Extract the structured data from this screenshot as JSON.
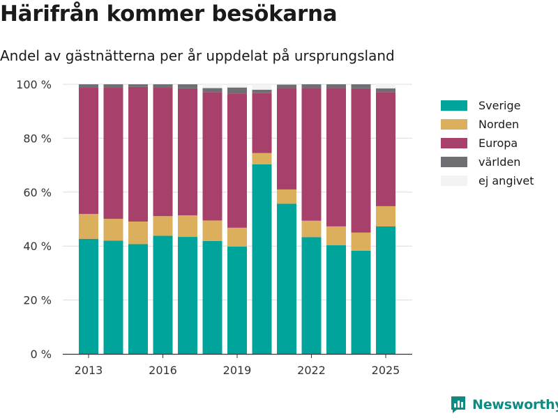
{
  "title": "Härifrån kommer besökarna",
  "subtitle": "Andel av gästnätterna per år uppdelat på ursprungsland",
  "brand": {
    "name": "Newsworthy",
    "icon": "newsworthy-logo-icon",
    "color": "#0e8a82"
  },
  "chart_data": {
    "type": "bar",
    "stacked": true,
    "categories": [
      2013,
      2014,
      2015,
      2016,
      2017,
      2018,
      2019,
      2020,
      2021,
      2022,
      2023,
      2024,
      2025
    ],
    "x_ticks": [
      "2013",
      "2016",
      "2019",
      "2022",
      "2025"
    ],
    "y_ticks": [
      "0 %",
      "20 %",
      "40 %",
      "60 %",
      "80 %",
      "100 %"
    ],
    "ylim": [
      0,
      100
    ],
    "grid": true,
    "legend_position": "right",
    "series": [
      {
        "name": "Sverige",
        "color": "#00a49a",
        "values": [
          42.7,
          42.0,
          40.7,
          43.8,
          43.4,
          41.9,
          39.8,
          70.3,
          55.7,
          43.3,
          40.3,
          38.3,
          47.3
        ]
      },
      {
        "name": "Norden",
        "color": "#dbaf5c",
        "values": [
          9.2,
          8.1,
          8.4,
          7.3,
          8.0,
          7.6,
          7.0,
          4.2,
          5.3,
          6.1,
          7.0,
          6.7,
          7.5
        ]
      },
      {
        "name": "Europa",
        "color": "#a7406a",
        "values": [
          46.8,
          48.6,
          49.9,
          47.6,
          47.1,
          47.6,
          49.8,
          22.2,
          37.6,
          49.2,
          51.3,
          53.5,
          42.3
        ]
      },
      {
        "name": "världen",
        "color": "#6e6e73",
        "values": [
          1.3,
          1.3,
          1.0,
          1.3,
          1.5,
          1.5,
          2.2,
          1.3,
          1.3,
          1.4,
          1.4,
          1.5,
          1.4
        ]
      },
      {
        "name": "ej angivet",
        "color": "#f3f3f3",
        "values": [
          0.0,
          0.0,
          0.0,
          0.0,
          0.0,
          1.4,
          1.2,
          2.0,
          0.1,
          0.0,
          0.0,
          0.0,
          1.5
        ]
      }
    ]
  }
}
